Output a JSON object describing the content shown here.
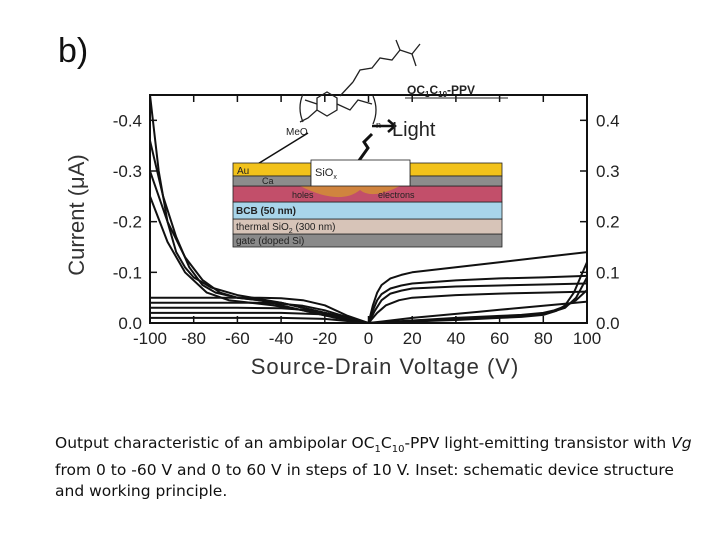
{
  "panel_label": "b)",
  "chart_data": {
    "type": "line",
    "xlabel": "Source-Drain Voltage (V)",
    "ylabel_left": "Current (μA)",
    "xlim": [
      -100,
      100
    ],
    "ylim_left": [
      0.0,
      -0.45
    ],
    "ylim_right": [
      0.0,
      0.45
    ],
    "x_ticks": [
      "-100",
      "-80",
      "-60",
      "-40",
      "-20",
      "0",
      "20",
      "40",
      "60",
      "80",
      "100"
    ],
    "y_ticks_left": [
      "0.0",
      "-0.1",
      "-0.2",
      "-0.3",
      "-0.4"
    ],
    "y_ticks_right": [
      "0.0",
      "0.1",
      "0.2",
      "0.3",
      "0.4"
    ],
    "series": [
      {
        "side": "left",
        "x": [
          -100,
          -96,
          -92,
          -88,
          -84,
          -80,
          -72,
          -60,
          -40,
          -20,
          0
        ],
        "y": [
          -0.45,
          -0.3,
          -0.2,
          -0.14,
          -0.11,
          -0.09,
          -0.07,
          -0.055,
          -0.04,
          -0.02,
          0
        ]
      },
      {
        "side": "left",
        "x": [
          -100,
          -94,
          -88,
          -82,
          -76,
          -70,
          -60,
          -40,
          -20,
          0
        ],
        "y": [
          -0.36,
          -0.25,
          -0.17,
          -0.11,
          -0.075,
          -0.06,
          -0.05,
          -0.04,
          -0.02,
          0
        ]
      },
      {
        "side": "left",
        "x": [
          -100,
          -92,
          -84,
          -76,
          -68,
          -60,
          -50,
          -40,
          -20,
          0
        ],
        "y": [
          -0.3,
          -0.2,
          -0.13,
          -0.085,
          -0.06,
          -0.05,
          -0.045,
          -0.035,
          -0.015,
          0
        ]
      },
      {
        "side": "left",
        "x": [
          -100,
          -92,
          -84,
          -74,
          -64,
          -54,
          -44,
          -30,
          -15,
          0
        ],
        "y": [
          -0.25,
          -0.16,
          -0.1,
          -0.06,
          -0.045,
          -0.04,
          -0.035,
          -0.025,
          -0.01,
          0
        ]
      },
      {
        "side": "left",
        "x": [
          -100,
          -90,
          -80,
          -70,
          -60,
          -50,
          -40,
          -30,
          -20,
          -10,
          0
        ],
        "y": [
          -0.05,
          -0.05,
          -0.05,
          -0.05,
          -0.05,
          -0.05,
          -0.049,
          -0.045,
          -0.035,
          -0.015,
          0
        ]
      },
      {
        "side": "left",
        "x": [
          -100,
          -80,
          -60,
          -50,
          -40,
          -30,
          -20,
          -10,
          0
        ],
        "y": [
          -0.04,
          -0.04,
          -0.04,
          -0.04,
          -0.038,
          -0.034,
          -0.025,
          -0.012,
          0
        ]
      },
      {
        "side": "left",
        "x": [
          -100,
          -80,
          -60,
          -40,
          -30,
          -20,
          -10,
          0
        ],
        "y": [
          -0.03,
          -0.03,
          -0.03,
          -0.029,
          -0.026,
          -0.02,
          -0.01,
          0
        ]
      },
      {
        "side": "left",
        "x": [
          -100,
          -80,
          -60,
          -40,
          -20,
          -10,
          0
        ],
        "y": [
          -0.02,
          -0.02,
          -0.02,
          -0.02,
          -0.017,
          -0.01,
          0
        ]
      },
      {
        "side": "left",
        "x": [
          -100,
          -80,
          -60,
          -40,
          -20,
          0
        ],
        "y": [
          -0.01,
          -0.01,
          -0.01,
          -0.01,
          -0.008,
          0
        ]
      },
      {
        "side": "right",
        "x": [
          0,
          2,
          4,
          6,
          10,
          15,
          20,
          40,
          60,
          80,
          100
        ],
        "y": [
          0,
          0.035,
          0.06,
          0.075,
          0.088,
          0.095,
          0.1,
          0.11,
          0.12,
          0.13,
          0.14
        ]
      },
      {
        "side": "right",
        "x": [
          0,
          2,
          4,
          6,
          10,
          15,
          20,
          40,
          60,
          80,
          100
        ],
        "y": [
          0,
          0.025,
          0.045,
          0.057,
          0.068,
          0.074,
          0.078,
          0.084,
          0.088,
          0.09,
          0.093
        ]
      },
      {
        "side": "right",
        "x": [
          0,
          3,
          6,
          10,
          15,
          20,
          40,
          60,
          80,
          100
        ],
        "y": [
          0,
          0.025,
          0.045,
          0.058,
          0.064,
          0.068,
          0.072,
          0.074,
          0.076,
          0.078
        ]
      },
      {
        "side": "right",
        "x": [
          0,
          4,
          8,
          14,
          20,
          40,
          60,
          80,
          100
        ],
        "y": [
          0,
          0.02,
          0.035,
          0.045,
          0.05,
          0.055,
          0.058,
          0.06,
          0.062
        ]
      },
      {
        "side": "right",
        "x": [
          0,
          10,
          20,
          30,
          40,
          50,
          60,
          70,
          80,
          90,
          100
        ],
        "y": [
          0,
          0.005,
          0.01,
          0.014,
          0.018,
          0.022,
          0.026,
          0.03,
          0.034,
          0.038,
          0.042
        ]
      },
      {
        "side": "right",
        "x": [
          0,
          20,
          40,
          50,
          60,
          70,
          80,
          85,
          90,
          95,
          100
        ],
        "y": [
          0,
          0.005,
          0.01,
          0.012,
          0.014,
          0.016,
          0.02,
          0.025,
          0.033,
          0.045,
          0.065
        ]
      },
      {
        "side": "right",
        "x": [
          0,
          20,
          40,
          60,
          70,
          80,
          85,
          90,
          95,
          100
        ],
        "y": [
          0,
          0.004,
          0.008,
          0.012,
          0.014,
          0.018,
          0.023,
          0.03,
          0.05,
          0.09
        ]
      },
      {
        "side": "right",
        "x": [
          0,
          20,
          40,
          60,
          70,
          80,
          86,
          90,
          94,
          97,
          100
        ],
        "y": [
          0,
          0.003,
          0.006,
          0.01,
          0.012,
          0.016,
          0.024,
          0.035,
          0.06,
          0.09,
          0.12
        ]
      }
    ]
  },
  "inset": {
    "molecule_label": "OC1C10-PPV",
    "subscript_label": "n",
    "methoxy_label": "MeO",
    "light_label": "Light",
    "layers": {
      "au": "Au",
      "ca": "Ca",
      "siox": "SiOx",
      "holes": "holes",
      "electrons": "electrons",
      "bcb": "BCB (50 nm)",
      "thermal": "thermal SiO2 (300 nm)",
      "gate": "gate (doped Si)"
    },
    "colors": {
      "au": "#f2c21b",
      "ca": "#8c8c8c",
      "semiconductor": "#c24f6a",
      "bcb": "#a8d5ea",
      "thermal": "#d7c4b8",
      "gate": "#8a8a8a"
    }
  },
  "caption": {
    "part1": "Output characteristic of an ambipolar OC",
    "sub1": "1",
    "part2": "C",
    "sub2": "10",
    "part3": "-PPV light-emitting transistor with ",
    "italic": "Vg",
    "part4": " from 0 to -60 V and 0 to 60 V in steps of 10 V. Inset: schematic device structure and working principle."
  }
}
